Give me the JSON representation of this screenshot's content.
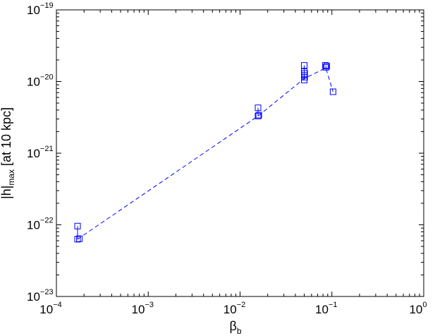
{
  "chart_data": {
    "type": "scatter",
    "xscale": "log",
    "yscale": "log",
    "xlim": [
      0.0001,
      1
    ],
    "ylim": [
      1e-23,
      1e-19
    ],
    "grid": false,
    "legend": "none",
    "color": "#0000ff",
    "marker": "square",
    "xlabel": {
      "base": "β",
      "sub": "b"
    },
    "ylabel": {
      "main": "|h|",
      "sub": "max",
      "suffix": " [at 10 kpc]"
    },
    "xticks": [
      {
        "value": 0.0001,
        "base": "10",
        "exp": "−4"
      },
      {
        "value": 0.001,
        "base": "10",
        "exp": "−3"
      },
      {
        "value": 0.01,
        "base": "10",
        "exp": "−2"
      },
      {
        "value": 0.1,
        "base": "10",
        "exp": "−1"
      },
      {
        "value": 1,
        "base": "10",
        "exp": "0"
      }
    ],
    "yticks": [
      {
        "value": 1e-23,
        "base": "10",
        "exp": "−23"
      },
      {
        "value": 1e-22,
        "base": "10",
        "exp": "−22"
      },
      {
        "value": 1e-21,
        "base": "10",
        "exp": "−21"
      },
      {
        "value": 1e-20,
        "base": "10",
        "exp": "−20"
      },
      {
        "value": 1e-19,
        "base": "10",
        "exp": "−19"
      }
    ],
    "points": [
      {
        "x": 0.00017,
        "y": 9.6e-23
      },
      {
        "x": 0.00017,
        "y": 6.3e-23
      },
      {
        "x": 0.000178,
        "y": 6.4e-23
      },
      {
        "x": 0.0157,
        "y": 4.3e-21
      },
      {
        "x": 0.0157,
        "y": 3.3e-21
      },
      {
        "x": 0.016,
        "y": 3.4e-21
      },
      {
        "x": 0.05,
        "y": 1.68e-20
      },
      {
        "x": 0.05,
        "y": 1.38e-20
      },
      {
        "x": 0.0505,
        "y": 1.3e-20
      },
      {
        "x": 0.05,
        "y": 1.22e-20
      },
      {
        "x": 0.0505,
        "y": 1.15e-20
      },
      {
        "x": 0.05,
        "y": 1.05e-20
      },
      {
        "x": 0.085,
        "y": 1.68e-20
      },
      {
        "x": 0.088,
        "y": 1.64e-20
      },
      {
        "x": 0.086,
        "y": 1.58e-20
      },
      {
        "x": 0.103,
        "y": 7.2e-21
      }
    ],
    "line": {
      "style": "dashed",
      "x": [
        0.00017,
        0.0157,
        0.05,
        0.086,
        0.103
      ],
      "y": [
        6.3e-23,
        3.3e-21,
        1.1e-20,
        1.55e-20,
        7.2e-21
      ]
    },
    "error_bars": [
      {
        "x": 0.00017,
        "y_low": 6.3e-23,
        "y_high": 9.6e-23
      },
      {
        "x": 0.0157,
        "y_low": 3.3e-21,
        "y_high": 4.3e-21
      },
      {
        "x": 0.05,
        "y_low": 1.05e-20,
        "y_high": 1.68e-20
      },
      {
        "x": 0.086,
        "y_low": 1.55e-20,
        "y_high": 1.68e-20
      }
    ]
  }
}
